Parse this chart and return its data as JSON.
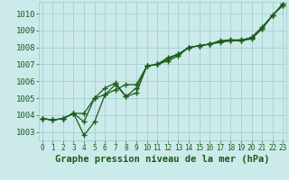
{
  "xlabel": "Graphe pression niveau de la mer (hPa)",
  "x": [
    0,
    1,
    2,
    3,
    4,
    5,
    6,
    7,
    8,
    9,
    10,
    11,
    12,
    13,
    14,
    15,
    16,
    17,
    18,
    19,
    20,
    21,
    22,
    23
  ],
  "series1": [
    1003.8,
    1003.7,
    1003.8,
    1004.1,
    1002.8,
    1003.6,
    1005.2,
    1005.8,
    1005.1,
    1005.3,
    1006.9,
    1007.0,
    1007.2,
    1007.5,
    1008.0,
    1008.1,
    1008.2,
    1008.3,
    1008.4,
    1008.4,
    1008.5,
    1009.1,
    1009.9,
    1010.5
  ],
  "series2": [
    1003.8,
    1003.7,
    1003.8,
    1004.1,
    1004.1,
    1005.0,
    1005.2,
    1005.5,
    1005.8,
    1005.8,
    1006.9,
    1007.0,
    1007.3,
    1007.6,
    1008.0,
    1008.1,
    1008.2,
    1008.35,
    1008.4,
    1008.4,
    1008.6,
    1009.2,
    1009.9,
    1010.5
  ],
  "series3": [
    1003.8,
    1003.7,
    1003.8,
    1004.1,
    1003.6,
    1005.0,
    1005.6,
    1005.9,
    1005.1,
    1005.6,
    1006.9,
    1007.0,
    1007.4,
    1007.6,
    1008.0,
    1008.1,
    1008.2,
    1008.4,
    1008.45,
    1008.45,
    1008.55,
    1009.1,
    1009.9,
    1010.6
  ],
  "bg_color": "#cceaea",
  "grid_color": "#99cccc",
  "line_color": "#1a5c1a",
  "marker_color": "#1a5c1a",
  "axis_label_color": "#1a5c1a",
  "ylim": [
    1002.5,
    1010.7
  ],
  "yticks": [
    1003,
    1004,
    1005,
    1006,
    1007,
    1008,
    1009,
    1010
  ],
  "xlim": [
    -0.3,
    23.3
  ],
  "xlabel_fontsize": 7.5,
  "tick_fontsize": 6.5,
  "xtick_fontsize": 5.5
}
